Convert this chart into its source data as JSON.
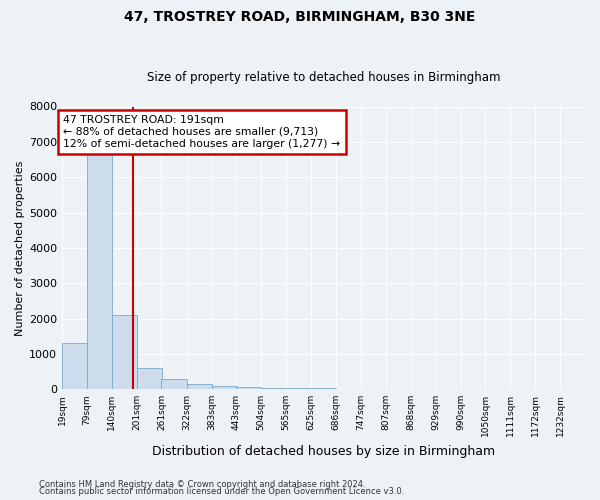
{
  "title": "47, TROSTREY ROAD, BIRMINGHAM, B30 3NE",
  "subtitle": "Size of property relative to detached houses in Birmingham",
  "xlabel": "Distribution of detached houses by size in Birmingham",
  "ylabel": "Number of detached properties",
  "footnote1": "Contains HM Land Registry data © Crown copyright and database right 2024.",
  "footnote2": "Contains public sector information licensed under the Open Government Licence v3.0.",
  "annotation_line1": "47 TROSTREY ROAD: 191sqm",
  "annotation_line2": "← 88% of detached houses are smaller (9,713)",
  "annotation_line3": "12% of semi-detached houses are larger (1,277) →",
  "bar_color": "#ccdcec",
  "bar_edge_color": "#7aaac8",
  "ref_line_color": "#cc0000",
  "ref_line_x": 191,
  "categories": [
    "19sqm",
    "79sqm",
    "140sqm",
    "201sqm",
    "261sqm",
    "322sqm",
    "383sqm",
    "443sqm",
    "504sqm",
    "565sqm",
    "625sqm",
    "686sqm",
    "747sqm",
    "807sqm",
    "868sqm",
    "929sqm",
    "990sqm",
    "1050sqm",
    "1111sqm",
    "1172sqm",
    "1232sqm"
  ],
  "bin_edges": [
    19,
    79,
    140,
    201,
    261,
    322,
    383,
    443,
    504,
    565,
    625,
    686,
    747,
    807,
    868,
    929,
    990,
    1050,
    1111,
    1172,
    1232
  ],
  "bin_width": 61,
  "values": [
    1300,
    6700,
    2100,
    600,
    290,
    145,
    95,
    50,
    45,
    45,
    40,
    0,
    0,
    0,
    0,
    0,
    0,
    0,
    0,
    0,
    0
  ],
  "ylim": [
    0,
    8000
  ],
  "yticks": [
    0,
    1000,
    2000,
    3000,
    4000,
    5000,
    6000,
    7000,
    8000
  ],
  "background_color": "#edf2f7",
  "plot_bg_color": "#edf2f7",
  "grid_color": "#ffffff",
  "title_fontsize": 10,
  "subtitle_fontsize": 8.5,
  "ylabel_fontsize": 8,
  "xlabel_fontsize": 9,
  "ytick_fontsize": 8,
  "xtick_fontsize": 6.5,
  "footnote_fontsize": 6.0
}
